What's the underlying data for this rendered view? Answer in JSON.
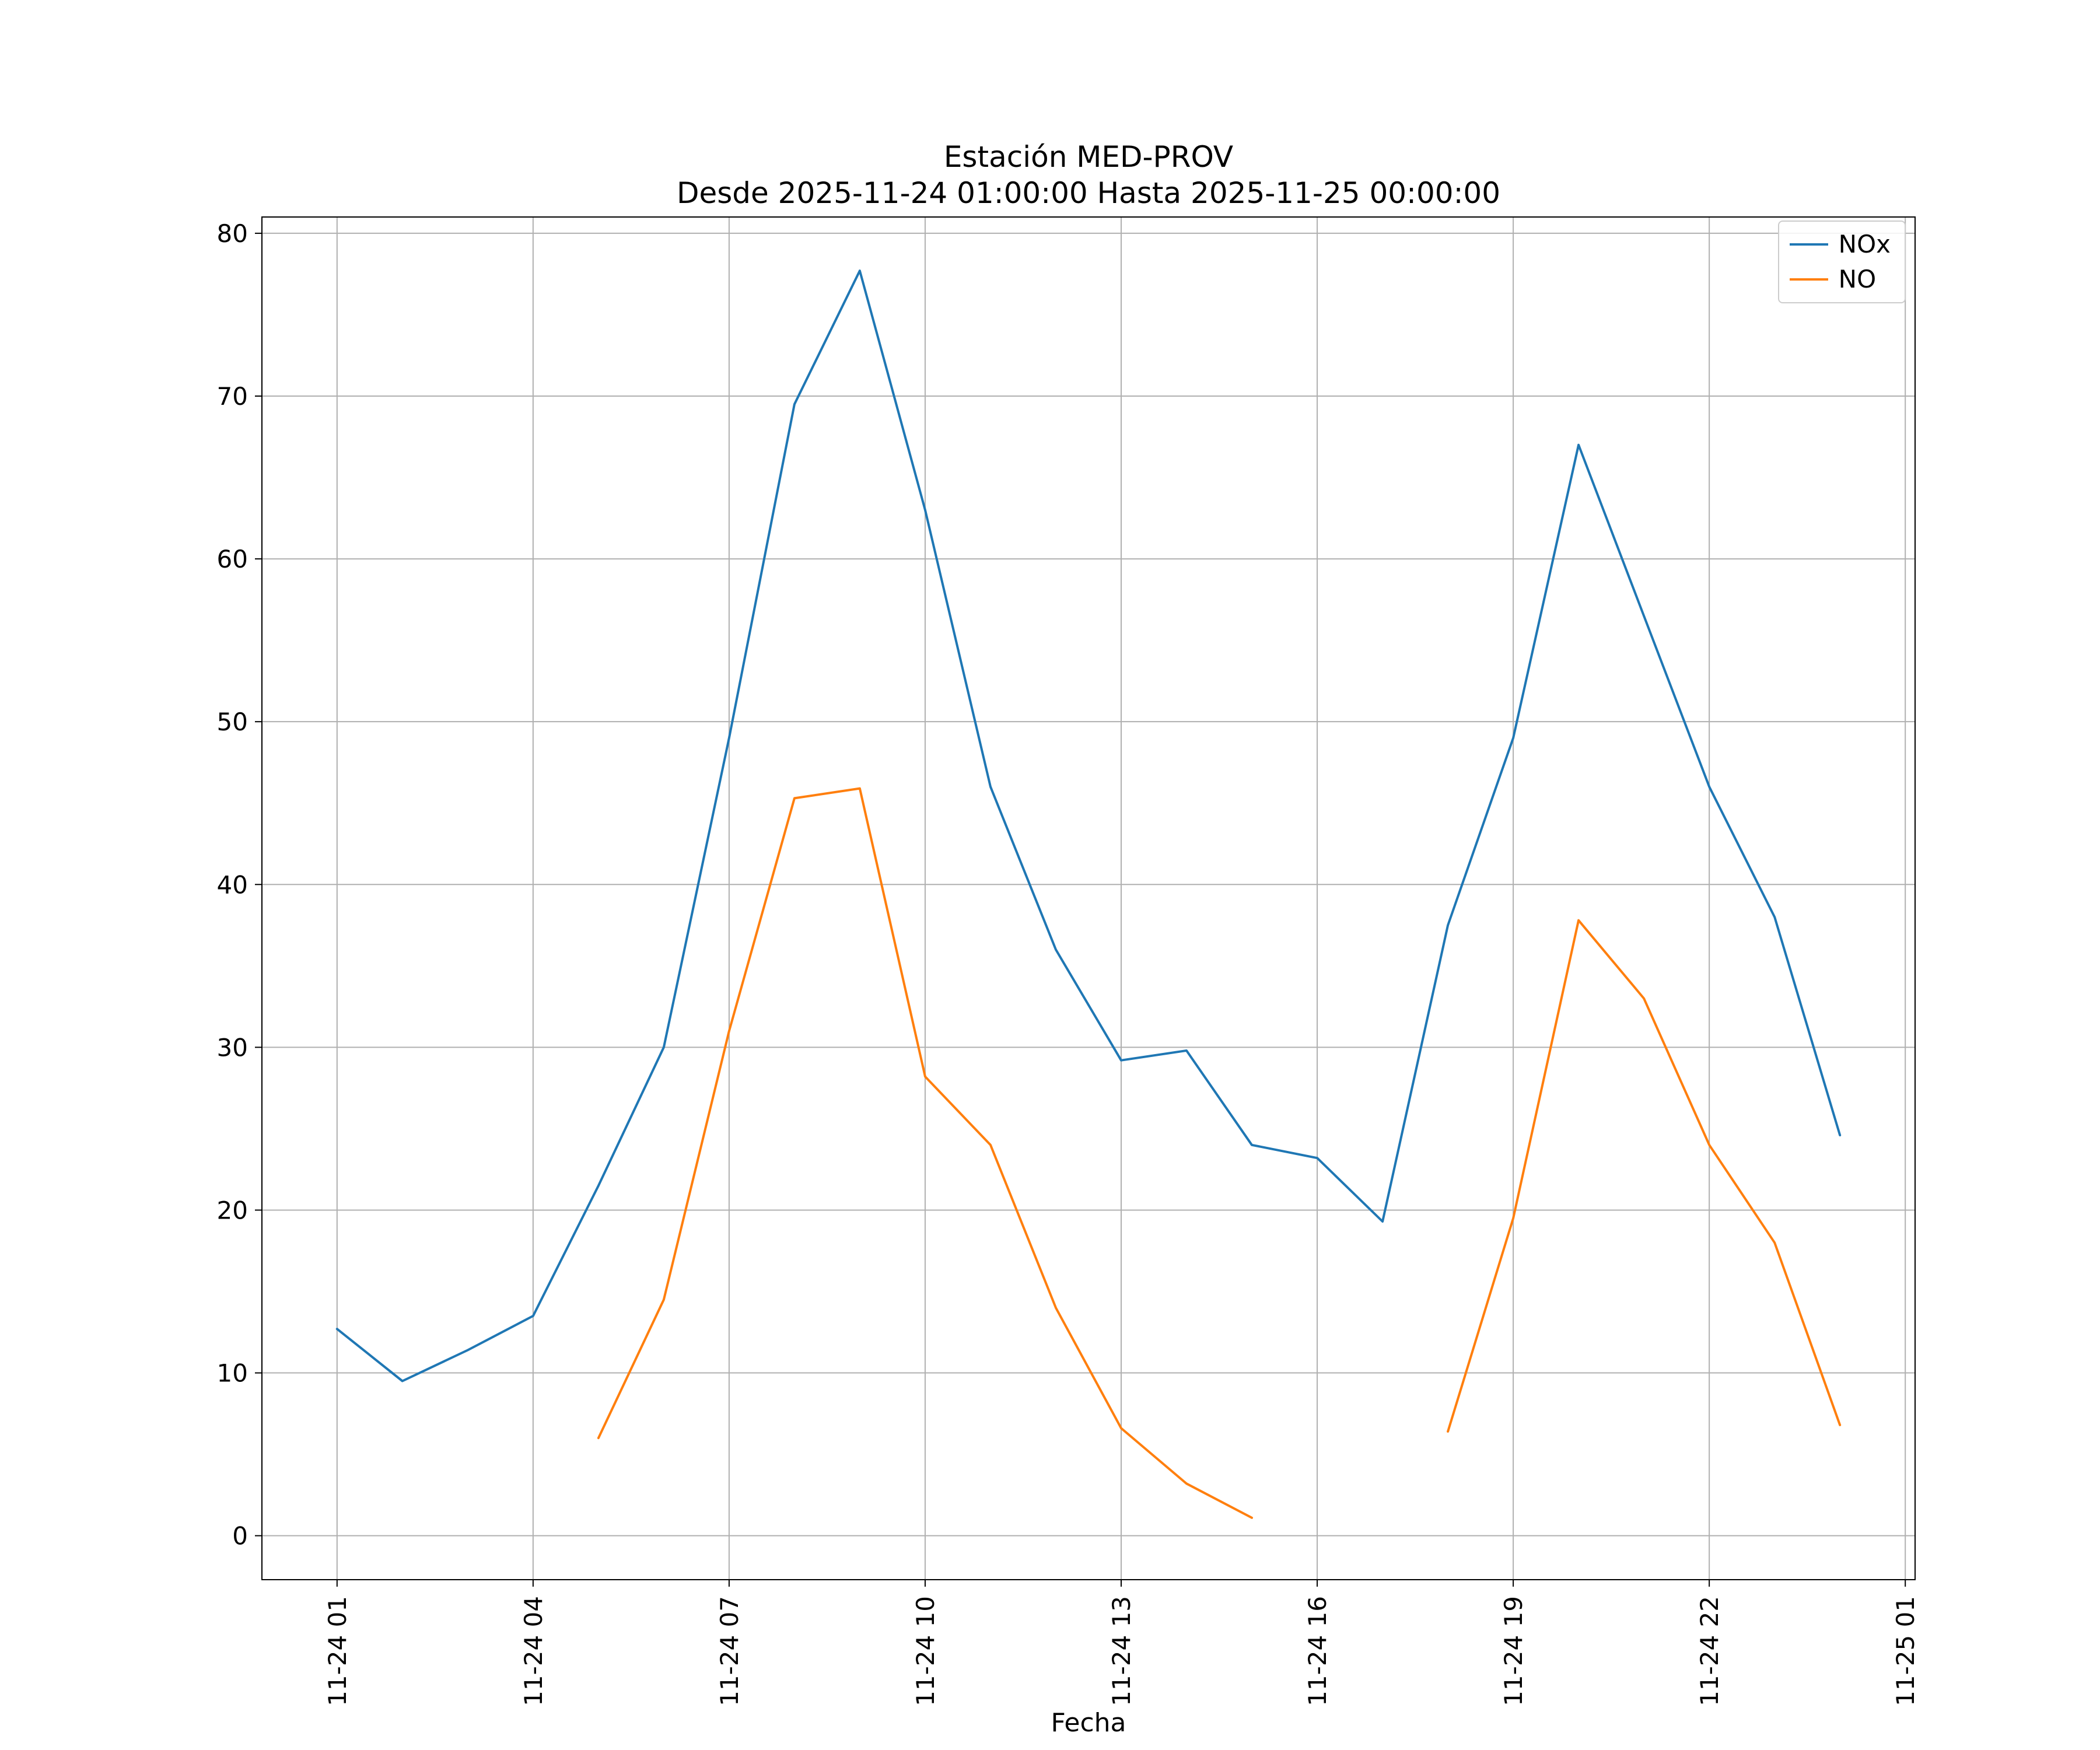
{
  "chart_data": {
    "type": "line",
    "title": "Estación MED-PROV",
    "subtitle": "Desde 2025-11-24 01:00:00 Hasta 2025-11-25 00:00:00",
    "xlabel": "Fecha",
    "ylabel": "",
    "grid": true,
    "grid_color": "#b0b0b0",
    "legend_position": "upper right",
    "xlim": [
      -0.15,
      25.15
    ],
    "ylim": [
      -2.7,
      81.0
    ],
    "x_ticks": [
      {
        "hour": 1,
        "label": "11-24 01"
      },
      {
        "hour": 4,
        "label": "11-24 04"
      },
      {
        "hour": 7,
        "label": "11-24 07"
      },
      {
        "hour": 10,
        "label": "11-24 10"
      },
      {
        "hour": 13,
        "label": "11-24 13"
      },
      {
        "hour": 16,
        "label": "11-24 16"
      },
      {
        "hour": 19,
        "label": "11-24 19"
      },
      {
        "hour": 22,
        "label": "11-24 22"
      },
      {
        "hour": 25,
        "label": "11-25 01"
      }
    ],
    "y_ticks": [
      0,
      10,
      20,
      30,
      40,
      50,
      60,
      70,
      80
    ],
    "series": [
      {
        "name": "NOx",
        "color": "#1f77b4",
        "segments": [
          [
            [
              1,
              12.7
            ],
            [
              2,
              9.5
            ],
            [
              3,
              11.4
            ],
            [
              4,
              13.5
            ],
            [
              5,
              21.5
            ],
            [
              6,
              30.0
            ],
            [
              7,
              49.0
            ],
            [
              8,
              69.5
            ],
            [
              9,
              77.7
            ],
            [
              10,
              63.0
            ],
            [
              11,
              46.0
            ],
            [
              12,
              36.0
            ],
            [
              13,
              29.2
            ],
            [
              14,
              29.8
            ],
            [
              15,
              24.0
            ],
            [
              16,
              23.2
            ],
            [
              17,
              19.3
            ],
            [
              18,
              37.5
            ],
            [
              19,
              49.0
            ],
            [
              20,
              67.0
            ],
            [
              21,
              56.5
            ],
            [
              22,
              46.0
            ],
            [
              23,
              38.0
            ],
            [
              24,
              24.6
            ]
          ]
        ]
      },
      {
        "name": "NO",
        "color": "#ff7f0e",
        "segments": [
          [
            [
              5,
              6.0
            ],
            [
              6,
              14.5
            ],
            [
              7,
              31.0
            ],
            [
              8,
              45.3
            ],
            [
              9,
              45.9
            ],
            [
              10,
              28.2
            ],
            [
              11,
              24.0
            ],
            [
              12,
              14.0
            ],
            [
              13,
              6.6
            ],
            [
              14,
              3.2
            ],
            [
              15,
              1.1
            ]
          ],
          [
            [
              18,
              6.4
            ],
            [
              19,
              19.5
            ],
            [
              20,
              37.8
            ],
            [
              21,
              33.0
            ],
            [
              22,
              24.0
            ],
            [
              23,
              18.0
            ],
            [
              24,
              6.8
            ]
          ]
        ]
      }
    ]
  }
}
